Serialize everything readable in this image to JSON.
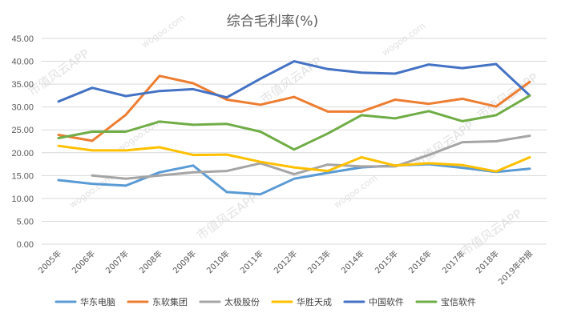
{
  "chart_data": {
    "type": "line",
    "title": "综合毛利率(%)",
    "categories": [
      "2005年",
      "2006年",
      "2007年",
      "2008年",
      "2009年",
      "2010年",
      "2011年",
      "2012年",
      "2013年",
      "2014年",
      "2015年",
      "2016年",
      "2017年",
      "2018年",
      "2019年中报"
    ],
    "y_ticks": [
      "0.00",
      "5.00",
      "10.00",
      "15.00",
      "20.00",
      "25.00",
      "30.00",
      "35.00",
      "40.00",
      "45.00"
    ],
    "ylim": [
      0,
      45
    ],
    "grid": true,
    "legend_position": "bottom",
    "series": [
      {
        "name": "华东电脑",
        "color": "#5b9bd5",
        "values": [
          14.0,
          13.2,
          12.8,
          15.7,
          17.2,
          11.4,
          10.9,
          14.3,
          15.6,
          16.8,
          17.2,
          17.5,
          16.7,
          15.8,
          16.5
        ]
      },
      {
        "name": "东软集团",
        "color": "#ed7d31",
        "values": [
          23.9,
          22.6,
          28.3,
          36.8,
          35.2,
          31.6,
          30.5,
          32.2,
          29.0,
          29.0,
          31.6,
          30.7,
          31.8,
          30.1,
          35.5
        ]
      },
      {
        "name": "太极股份",
        "color": "#a5a5a5",
        "values": [
          null,
          15.0,
          14.3,
          15.0,
          15.7,
          16.0,
          17.7,
          15.3,
          17.4,
          17.0,
          17.0,
          19.5,
          22.3,
          22.5,
          23.7
        ]
      },
      {
        "name": "华胜天成",
        "color": "#ffc000",
        "values": [
          21.5,
          20.5,
          20.5,
          21.2,
          19.5,
          19.6,
          18.0,
          16.8,
          16.0,
          19.0,
          17.2,
          17.7,
          17.3,
          15.9,
          19.0
        ]
      },
      {
        "name": "中国软件",
        "color": "#4472c4",
        "values": [
          31.2,
          34.2,
          32.4,
          33.5,
          33.9,
          32.1,
          36.2,
          40.0,
          38.3,
          37.5,
          37.3,
          39.3,
          38.5,
          39.4,
          32.5
        ]
      },
      {
        "name": "宝信软件",
        "color": "#70ad47",
        "values": [
          23.2,
          24.6,
          24.6,
          26.8,
          26.1,
          26.3,
          24.6,
          20.7,
          24.2,
          28.2,
          27.5,
          29.1,
          26.9,
          28.2,
          32.5
        ]
      }
    ]
  },
  "watermark": {
    "text": "市值风云APP",
    "sub": "wogoo.com"
  }
}
